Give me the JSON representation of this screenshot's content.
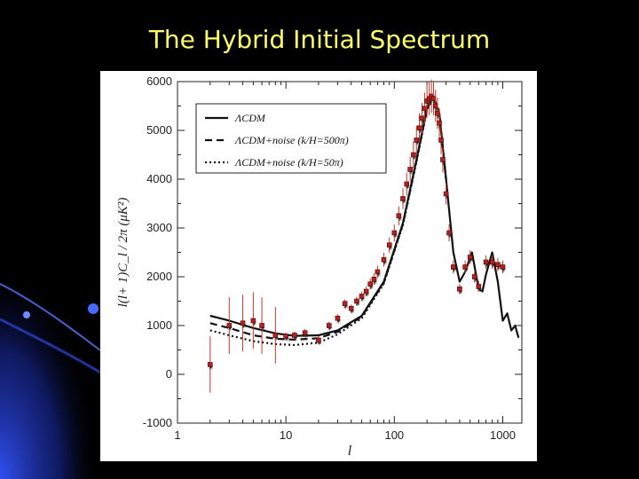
{
  "slide": {
    "title": "The Hybrid Initial Spectrum",
    "accent_color": "#ffff66",
    "background": "#000000"
  },
  "chart_data": {
    "type": "line",
    "title": "",
    "xlabel": "l",
    "ylabel": "l(l+ 1)C_l / 2π (μK²)",
    "xscale": "log",
    "xlim": [
      1,
      1500
    ],
    "ylim": [
      -1000,
      6000
    ],
    "x_ticks": [
      1,
      10,
      100,
      1000
    ],
    "x_tick_labels": [
      "1",
      "10",
      "100",
      "1000"
    ],
    "y_ticks": [
      -1000,
      0,
      1000,
      2000,
      3000,
      4000,
      5000,
      6000
    ],
    "y_tick_labels": [
      "-1000",
      "0",
      "1000",
      "2000",
      "3000",
      "4000",
      "5000",
      "6000"
    ],
    "legend_position": "top-left",
    "grid": false,
    "series": [
      {
        "name": "ΛCDM",
        "style": "solid",
        "x": [
          2,
          3,
          5,
          8,
          12,
          20,
          30,
          50,
          80,
          120,
          160,
          200,
          230,
          260,
          300,
          350,
          400,
          450,
          520,
          600,
          650,
          700,
          800,
          900,
          1000,
          1100,
          1200,
          1300,
          1400
        ],
        "y": [
          1200,
          1100,
          950,
          840,
          790,
          800,
          900,
          1200,
          1900,
          3100,
          4400,
          5450,
          5700,
          5350,
          4000,
          2500,
          1900,
          2100,
          2500,
          1750,
          1700,
          2050,
          2500,
          1900,
          1100,
          1250,
          900,
          1000,
          750
        ]
      },
      {
        "name": "ΛCDM+noise (k/H=500π)",
        "style": "dashed",
        "x": [
          2,
          3,
          5,
          8,
          12,
          20,
          30,
          50,
          80,
          120,
          160,
          200,
          230,
          260,
          300
        ],
        "y": [
          1050,
          950,
          800,
          730,
          710,
          740,
          870,
          1180,
          1880,
          3080,
          4380,
          5430,
          5690,
          5340,
          4000
        ]
      },
      {
        "name": "ΛCDM+noise (k/H=50π)",
        "style": "dotted",
        "x": [
          2,
          3,
          5,
          8,
          12,
          20,
          30,
          50,
          80,
          120,
          160,
          200,
          230,
          260,
          300
        ],
        "y": [
          900,
          800,
          680,
          620,
          600,
          650,
          820,
          1150,
          1860,
          3060,
          4360,
          5420,
          5680,
          5330,
          4000
        ]
      }
    ],
    "observations": {
      "name": "data",
      "x": [
        2,
        3,
        4,
        5,
        6,
        8,
        10,
        12,
        15,
        20,
        25,
        30,
        35,
        40,
        45,
        50,
        55,
        60,
        65,
        70,
        80,
        90,
        100,
        110,
        120,
        130,
        140,
        150,
        160,
        170,
        180,
        190,
        200,
        210,
        220,
        230,
        240,
        250,
        260,
        270,
        280,
        300,
        320,
        350,
        400,
        450,
        500,
        550,
        600,
        700,
        800,
        900,
        1000
      ],
      "y": [
        200,
        1000,
        1050,
        1100,
        1000,
        800,
        780,
        800,
        850,
        700,
        1000,
        1150,
        1450,
        1350,
        1500,
        1600,
        1700,
        1850,
        1950,
        2100,
        2350,
        2650,
        2900,
        3250,
        3600,
        3900,
        4200,
        4500,
        4800,
        5050,
        5250,
        5450,
        5600,
        5650,
        5700,
        5650,
        5500,
        5350,
        5150,
        4800,
        4400,
        3700,
        2900,
        2200,
        1750,
        2200,
        2400,
        2000,
        1800,
        2300,
        2300,
        2250,
        2200
      ]
    }
  }
}
